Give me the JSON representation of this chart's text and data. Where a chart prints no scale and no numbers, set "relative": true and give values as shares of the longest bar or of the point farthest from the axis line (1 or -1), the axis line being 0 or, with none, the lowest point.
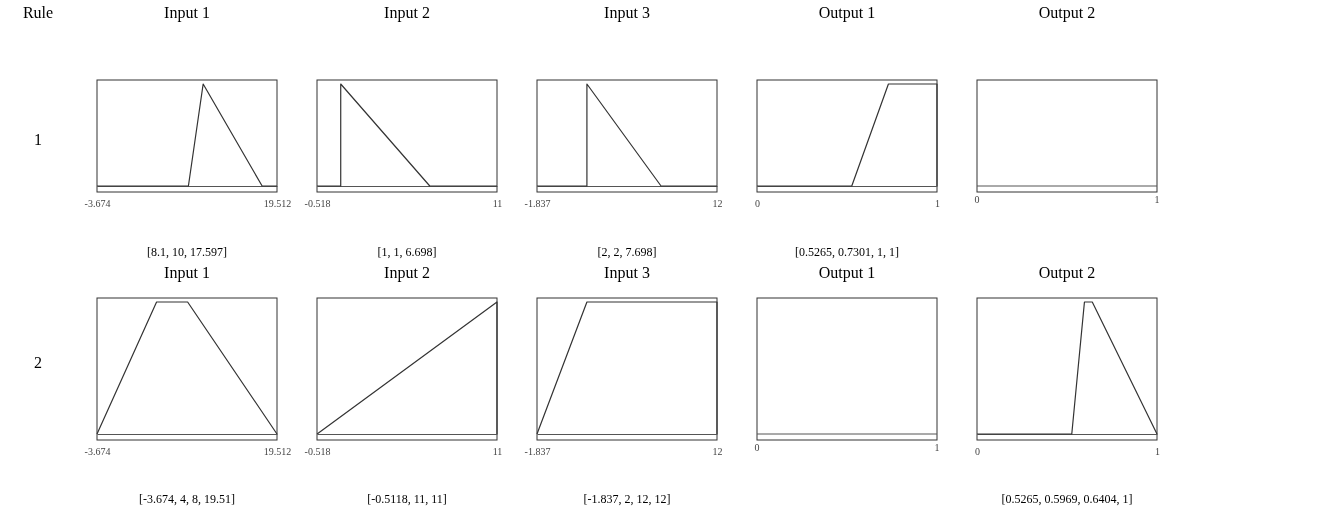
{
  "chart_data": [
    {
      "type": "other",
      "annotations": [
        "Rule",
        "1",
        "2"
      ]
    },
    {
      "type": "line",
      "relative": true,
      "title": "Input 1",
      "xlim": [
        -3.674,
        19.512
      ],
      "xticks": [
        -3.674,
        19.512
      ],
      "tick_labels": "x",
      "line_style": "solid",
      "annotations": [
        "[8.1, 10, 17.597]"
      ],
      "series": [
        {
          "color": "#333333",
          "x": [
            -3.674,
            8.1,
            10,
            17.597,
            19.512
          ],
          "values": [
            0,
            0,
            1,
            0,
            0
          ]
        }
      ]
    },
    {
      "type": "line",
      "relative": true,
      "title": "Input 2",
      "xlim": [
        -0.518,
        11
      ],
      "xticks": [
        -0.518,
        11
      ],
      "tick_labels": "x",
      "line_style": "solid",
      "annotations": [
        "[1, 1, 6.698]"
      ],
      "series": [
        {
          "color": "#333333",
          "x": [
            -0.518,
            1,
            1,
            6.698,
            11
          ],
          "values": [
            0,
            0,
            1,
            0,
            0
          ]
        }
      ]
    },
    {
      "type": "line",
      "relative": true,
      "title": "Input 3",
      "xlim": [
        -1.837,
        12
      ],
      "xticks": [
        -1.837,
        12
      ],
      "tick_labels": "x",
      "line_style": "solid",
      "annotations": [
        "[2, 2, 7.698]"
      ],
      "series": [
        {
          "color": "#333333",
          "x": [
            -1.837,
            2,
            2,
            7.698,
            12
          ],
          "values": [
            0,
            0,
            1,
            0,
            0
          ]
        }
      ]
    },
    {
      "type": "line",
      "relative": true,
      "title": "Output 1",
      "xlim": [
        0,
        1
      ],
      "xticks": [
        0,
        1
      ],
      "tick_labels": "x",
      "line_style": "solid",
      "annotations": [
        "[0.5265, 0.7301, 1, 1]"
      ],
      "series": [
        {
          "color": "#333333",
          "x": [
            0,
            0.5265,
            0.7301,
            1,
            1
          ],
          "values": [
            0,
            0,
            1,
            1,
            0
          ]
        }
      ]
    },
    {
      "type": "other",
      "title": "Output 2",
      "annotations": [
        "0",
        "1"
      ]
    },
    {
      "type": "line",
      "relative": true,
      "title": "Input 1",
      "xlim": [
        -3.674,
        19.512
      ],
      "xticks": [
        -3.674,
        19.512
      ],
      "tick_labels": "x",
      "line_style": "solid",
      "annotations": [
        "[-3.674, 4, 8, 19.51]"
      ],
      "series": [
        {
          "color": "#333333",
          "x": [
            -3.674,
            4,
            8,
            19.51
          ],
          "values": [
            0,
            1,
            1,
            0
          ]
        }
      ]
    },
    {
      "type": "line",
      "relative": true,
      "title": "Input 2",
      "xlim": [
        -0.518,
        11
      ],
      "xticks": [
        -0.518,
        11
      ],
      "tick_labels": "x",
      "line_style": "solid",
      "annotations": [
        "[-0.5118, 11, 11]"
      ],
      "series": [
        {
          "color": "#333333",
          "x": [
            -0.5118,
            11,
            11
          ],
          "values": [
            0,
            1,
            0
          ]
        }
      ]
    },
    {
      "type": "line",
      "relative": true,
      "title": "Input 3",
      "xlim": [
        -1.837,
        12
      ],
      "xticks": [
        -1.837,
        12
      ],
      "tick_labels": "x",
      "line_style": "solid",
      "annotations": [
        "[-1.837, 2, 12, 12]"
      ],
      "series": [
        {
          "color": "#333333",
          "x": [
            -1.837,
            2,
            12,
            12
          ],
          "values": [
            0,
            1,
            1,
            0
          ]
        }
      ]
    },
    {
      "type": "other",
      "title": "Output 1",
      "annotations": [
        "0",
        "1"
      ]
    },
    {
      "type": "line",
      "relative": true,
      "title": "Output 2",
      "xlim": [
        0,
        1
      ],
      "xticks": [
        0,
        1
      ],
      "tick_labels": "x",
      "line_style": "solid",
      "annotations": [
        "[0.5265, 0.5969, 0.6404, 1]"
      ],
      "series": [
        {
          "color": "#333333",
          "x": [
            0,
            0.5265,
            0.5969,
            0.6404,
            1
          ],
          "values": [
            0,
            0,
            1,
            1,
            0
          ]
        }
      ]
    }
  ]
}
